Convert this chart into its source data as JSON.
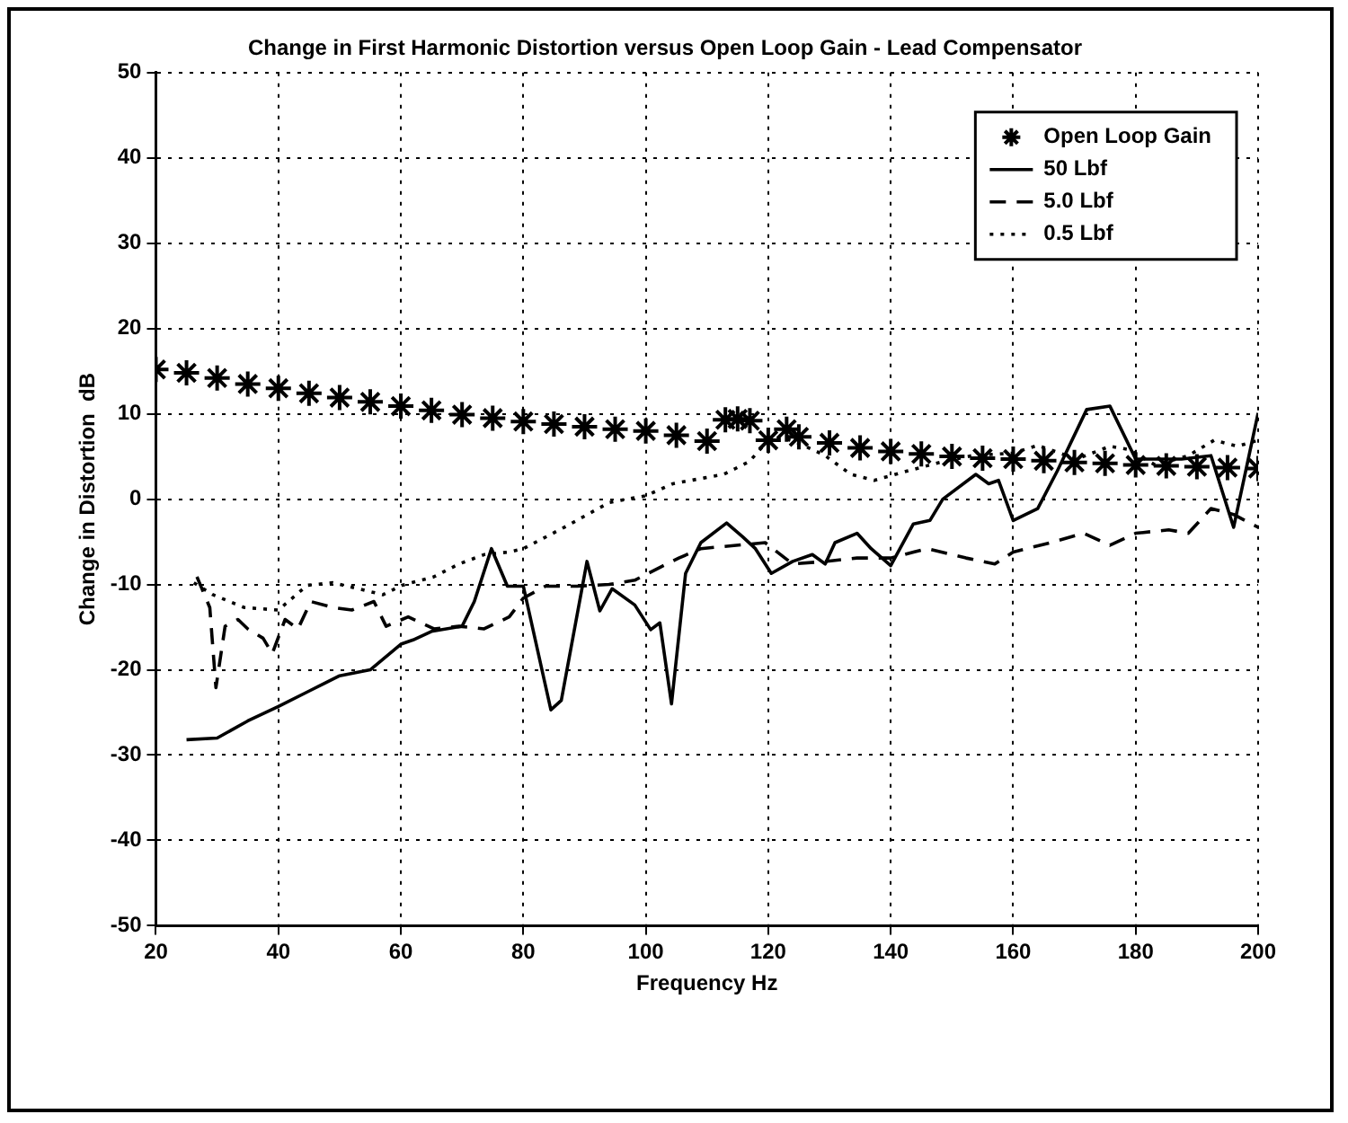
{
  "chart_data": {
    "type": "line",
    "title": "Change in First Harmonic Distortion versus Open Loop Gain - Lead Compensator",
    "xlabel": "Frequency Hz",
    "ylabel": "Change in Distortion  dB",
    "xlim": [
      20,
      200
    ],
    "xticks": [
      20,
      40,
      60,
      80,
      100,
      120,
      140,
      160,
      180,
      200
    ],
    "ylim": [
      -50,
      50
    ],
    "yticks": [
      -50,
      -40,
      -30,
      -20,
      -10,
      0,
      10,
      20,
      30,
      40,
      50
    ],
    "grid": true,
    "legend": "top right",
    "series": [
      {
        "name": "Open Loop Gain",
        "type": "scatter",
        "marker": "cross",
        "color": "#000000",
        "x": [
          20,
          25,
          30,
          35,
          40,
          45,
          50,
          55,
          60,
          65,
          70,
          75,
          80,
          85,
          90,
          95,
          100,
          105,
          110,
          113,
          115,
          117,
          120,
          123,
          125,
          130,
          135,
          140,
          145,
          150,
          155,
          160,
          165,
          170,
          175,
          180,
          185,
          190,
          195,
          200
        ],
        "values": [
          15.2,
          14.8,
          14.2,
          13.5,
          13.0,
          12.4,
          11.9,
          11.4,
          10.9,
          10.4,
          9.9,
          9.5,
          9.1,
          8.8,
          8.5,
          8.2,
          8.0,
          7.5,
          6.8,
          9.3,
          9.4,
          9.2,
          6.9,
          8.2,
          7.3,
          6.6,
          6.0,
          5.6,
          5.3,
          5.0,
          4.8,
          4.7,
          4.5,
          4.3,
          4.2,
          4.0,
          3.9,
          3.8,
          3.7,
          3.6
        ]
      },
      {
        "name": "50 Lbf",
        "line_style": "solid",
        "color": "#000000",
        "x": [
          25,
          30,
          35,
          40,
          45,
          50,
          55,
          60,
          62,
          65,
          70,
          72,
          74.8,
          77.4,
          80,
          84.5,
          86.2,
          90.4,
          92.5,
          94.5,
          98.2,
          100.8,
          102.3,
          104.2,
          106.5,
          109,
          113.2,
          115.8,
          117.9,
          120.5,
          124,
          127.2,
          129.3,
          130.9,
          134.5,
          136.8,
          140,
          143.7,
          146.4,
          148.5,
          153.9,
          156,
          157.6,
          160,
          164,
          167.2,
          172,
          175.8,
          180,
          187.5,
          192.3,
          196,
          200
        ],
        "values": [
          -28.2,
          -28,
          -26,
          -24.3,
          -22.5,
          -20.7,
          -20,
          -17,
          -16.5,
          -15.5,
          -14.9,
          -12,
          -5.8,
          -10.2,
          -10.2,
          -24.7,
          -23.6,
          -7.3,
          -13.1,
          -10.5,
          -12.4,
          -15.3,
          -14.5,
          -24,
          -8.7,
          -5.1,
          -2.8,
          -4.4,
          -5.8,
          -8.7,
          -7.3,
          -6.5,
          -7.6,
          -5.1,
          -4,
          -5.8,
          -7.8,
          -2.9,
          -2.5,
          0,
          2.9,
          1.8,
          2.2,
          -2.5,
          -1.1,
          3.3,
          10.5,
          10.9,
          4.7,
          4.7,
          5.1,
          -3.3,
          10.1
        ]
      },
      {
        "name": "5.0 Lbf",
        "line_style": "dashed",
        "color": "#000000",
        "x": [
          26.7,
          28.8,
          29.8,
          31.3,
          33.4,
          35,
          37.5,
          39,
          41.1,
          43.2,
          45.3,
          48.9,
          52,
          55.6,
          57.6,
          61.2,
          65.4,
          69.5,
          73.6,
          77.7,
          80,
          83.6,
          88.8,
          94,
          98.2,
          102.3,
          105.4,
          109,
          119.5,
          124,
          129.3,
          134.5,
          140,
          145.9,
          152.3,
          157,
          160,
          166.1,
          171.5,
          175.8,
          180,
          185.4,
          188.6,
          192.3,
          196,
          200
        ],
        "values": [
          -9.1,
          -12.7,
          -22.1,
          -14.9,
          -14.1,
          -15.2,
          -16.3,
          -18.1,
          -14.1,
          -15.2,
          -12,
          -12.7,
          -13,
          -12,
          -14.9,
          -13.8,
          -15.2,
          -14.9,
          -15.2,
          -13.8,
          -11.6,
          -10.2,
          -10.2,
          -10,
          -9.5,
          -8,
          -6.9,
          -5.8,
          -5.1,
          -7.6,
          -7.3,
          -6.9,
          -6.9,
          -5.8,
          -6.9,
          -7.6,
          -6.2,
          -5.1,
          -4,
          -5.4,
          -4,
          -3.6,
          -4,
          -1.1,
          -1.8,
          -3.3
        ]
      },
      {
        "name": "0.5 Lbf",
        "line_style": "dotted",
        "color": "#000000",
        "x": [
          26.2,
          29.3,
          34.4,
          40,
          44.7,
          48.9,
          53,
          57.1,
          60.2,
          65.4,
          69.5,
          73.6,
          77.7,
          80,
          86.7,
          94,
          100,
          104.4,
          109.6,
          112.7,
          116.9,
          119.5,
          122,
          125.2,
          129.3,
          133.5,
          137.3,
          142.7,
          148,
          153.3,
          160,
          164,
          170.4,
          175.8,
          179,
          183.2,
          188.6,
          192.8,
          196.6,
          200
        ],
        "values": [
          -9.8,
          -11.2,
          -12.7,
          -13,
          -10.1,
          -9.8,
          -10.5,
          -11.2,
          -10.1,
          -9.1,
          -7.6,
          -6.5,
          -6.2,
          -5.8,
          -3.3,
          -0.4,
          0.4,
          1.8,
          2.5,
          2.9,
          4.4,
          6.5,
          7.3,
          6.5,
          5.1,
          2.9,
          2.2,
          3.3,
          4.3,
          5.1,
          5.4,
          6.3,
          4.7,
          6.2,
          5.8,
          4,
          5.1,
          6.9,
          6.2,
          6.9
        ]
      }
    ]
  }
}
